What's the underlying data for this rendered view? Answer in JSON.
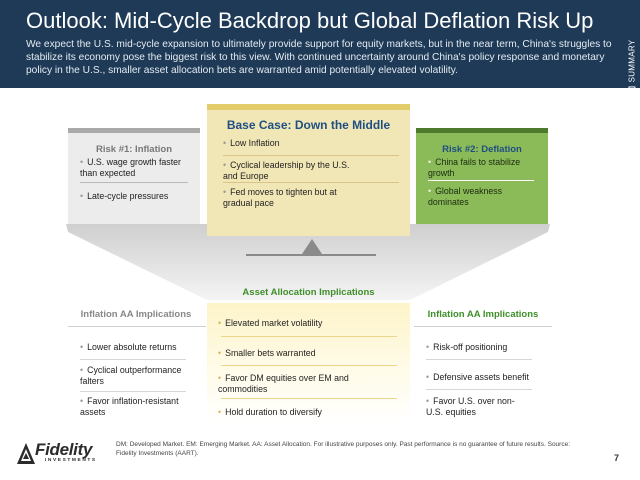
{
  "header": {
    "title": "Outlook: Mid-Cycle Backdrop but Global Deflation Risk Up",
    "subtitle": "We expect the U.S. mid-cycle expansion to ultimately provide support for equity markets, but in the near term, China's struggles to stabilize its economy pose the biggest risk to this view. With continued uncertainty around China's policy response and monetary policy in the U.S., smaller asset allocation bets are warranted amid potentially elevated volatility.",
    "side_tab": "SUMMARY"
  },
  "risk_inflation": {
    "title": "Risk #1: Inflation",
    "items": [
      "U.S. wage growth faster than expected",
      "Late-cycle pressures"
    ]
  },
  "base_case": {
    "title": "Base Case: Down the Middle",
    "items": [
      "Low Inflation",
      "Cyclical leadership by the U.S. and Europe",
      "Fed moves to tighten but at gradual pace"
    ]
  },
  "risk_deflation": {
    "title": "Risk #2: Deflation",
    "items": [
      "China fails to stabilize growth",
      "Global weakness dominates"
    ]
  },
  "aa_left": {
    "title": "Inflation AA Implications",
    "items": [
      "Lower absolute returns",
      "Cyclical outperformance falters",
      "Favor inflation-resistant assets"
    ]
  },
  "aa_mid": {
    "title": "Asset Allocation Implications",
    "items": [
      "Elevated market volatility",
      "Smaller bets warranted",
      "Favor DM equities over EM and commodities",
      "Hold duration to diversify"
    ]
  },
  "aa_right": {
    "title": "Inflation AA Implications",
    "items": [
      "Risk-off positioning",
      "Defensive assets benefit",
      "Favor U.S. over non-U.S. equities"
    ]
  },
  "footer": {
    "footnote": "DM: Developed Market.  EM: Emerging Market. AA: Asset Allocation. For illustrative purposes only.  Past performance is no guarantee of future results. Source: Fidelity Investments (AART).",
    "page_number": "7",
    "logo_word": "Fidelity",
    "logo_sub": "INVESTMENTS"
  },
  "colors": {
    "header_bg": "#1e3a56",
    "base_case_bg": "#f1e6b6",
    "deflation_bg": "#8bbb58",
    "inflation_bg": "#ececec",
    "accent_green": "#3f8f2a",
    "accent_blue": "#1f4f82"
  }
}
